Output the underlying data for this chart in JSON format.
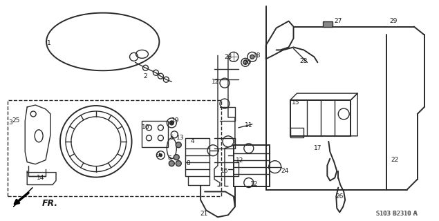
{
  "bg_color": "#ffffff",
  "line_color": "#2a2a2a",
  "label_color": "#1a1a1a",
  "diagram_code": "S103 B2310 A",
  "fr_label": "FR.",
  "figsize": [
    6.35,
    3.2
  ],
  "dpi": 100
}
